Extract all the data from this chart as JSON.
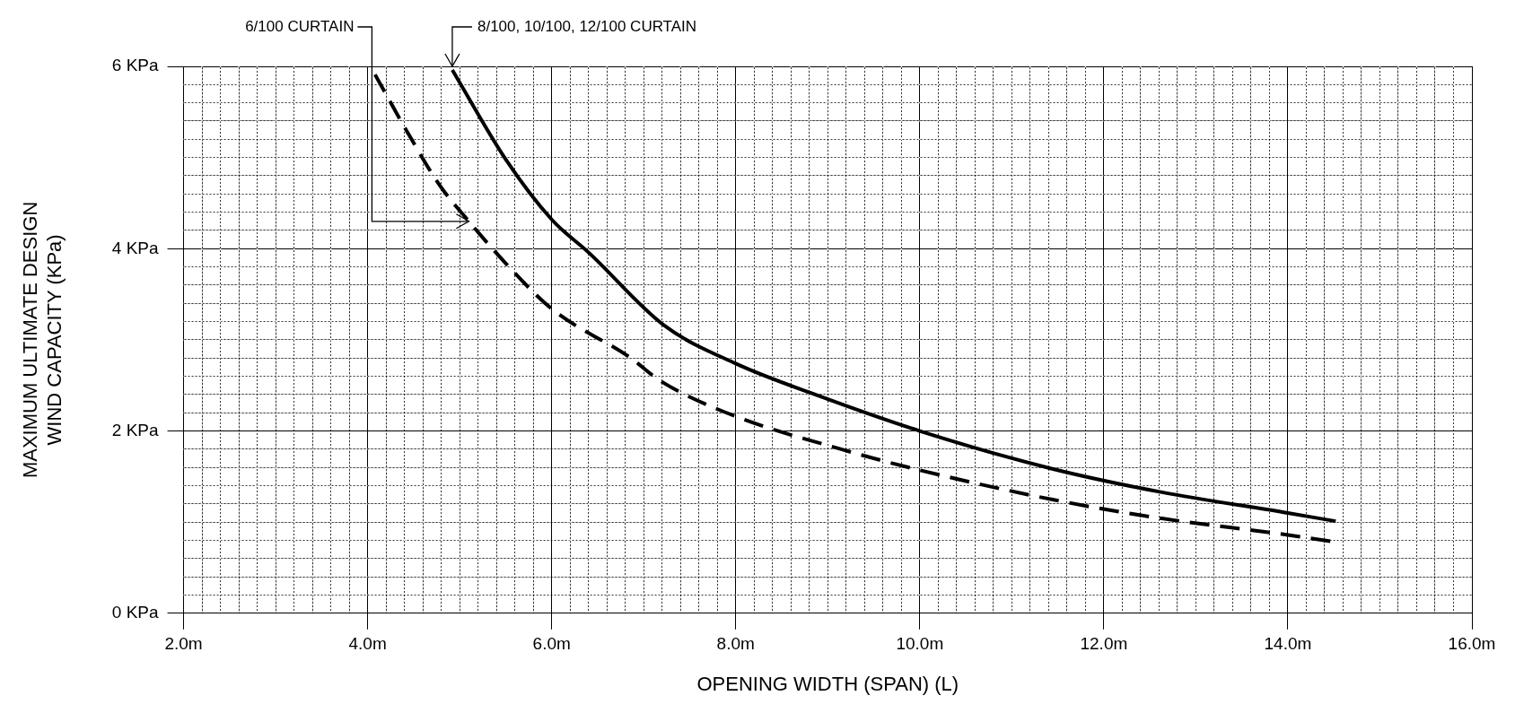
{
  "chart_data": {
    "type": "line",
    "xlabel": "OPENING WIDTH (SPAN) (L)",
    "ylabel": "MAXIMUM ULTIMATE DESIGN\nWIND CAPACITY (KPa)",
    "series": [
      {
        "color": "#000000",
        "line_style": "solid",
        "x": [
          4.92,
          5.5,
          6.0,
          6.41,
          7.22,
          8.0,
          8.89,
          10.0,
          11.42,
          12.62,
          14.0,
          14.52
        ],
        "values": [
          5.96,
          4.98,
          4.32,
          3.95,
          3.16,
          2.74,
          2.39,
          2.0,
          1.59,
          1.33,
          1.1,
          1.01
        ]
      },
      {
        "color": "#000000",
        "line_style": "dashed",
        "x": [
          4.08,
          4.42,
          4.78,
          5.1,
          5.5,
          6.0,
          6.86,
          7.18,
          8.0,
          9.18,
          10.0,
          11.48,
          12.63,
          14.0,
          14.52
        ],
        "values": [
          5.91,
          5.3,
          4.7,
          4.3,
          3.84,
          3.34,
          2.8,
          2.55,
          2.16,
          1.79,
          1.57,
          1.24,
          1.04,
          0.86,
          0.78
        ]
      }
    ],
    "annotations": [
      {
        "text": "6/100 CURTAIN",
        "x": 5.1,
        "y": 4.3
      },
      {
        "text": "8/100, 10/100, 12/100 CURTAIN",
        "x": 4.92,
        "y": 6.0
      }
    ],
    "xlim": [
      2,
      16
    ],
    "ylim": [
      0,
      6
    ],
    "grid": true,
    "legend": false,
    "marker": "none",
    "xticks": [
      {
        "value": 2,
        "label": "2.0m"
      },
      {
        "value": 2.2,
        "label": null
      },
      {
        "value": 2.4,
        "label": null
      },
      {
        "value": 2.6,
        "label": null
      },
      {
        "value": 2.8,
        "label": null
      },
      {
        "value": 3,
        "label": null
      },
      {
        "value": 3.2,
        "label": null
      },
      {
        "value": 3.4,
        "label": null
      },
      {
        "value": 3.6,
        "label": null
      },
      {
        "value": 3.8,
        "label": null
      },
      {
        "value": 4,
        "label": "4.0m"
      },
      {
        "value": 4.2,
        "label": null
      },
      {
        "value": 4.4,
        "label": null
      },
      {
        "value": 4.6,
        "label": null
      },
      {
        "value": 4.8,
        "label": null
      },
      {
        "value": 5,
        "label": null
      },
      {
        "value": 5.2,
        "label": null
      },
      {
        "value": 5.4,
        "label": null
      },
      {
        "value": 5.6,
        "label": null
      },
      {
        "value": 5.8,
        "label": null
      },
      {
        "value": 6,
        "label": "6.0m"
      },
      {
        "value": 6.2,
        "label": null
      },
      {
        "value": 6.4,
        "label": null
      },
      {
        "value": 6.6,
        "label": null
      },
      {
        "value": 6.8,
        "label": null
      },
      {
        "value": 7,
        "label": null
      },
      {
        "value": 7.2,
        "label": null
      },
      {
        "value": 7.4,
        "label": null
      },
      {
        "value": 7.6,
        "label": null
      },
      {
        "value": 7.8,
        "label": null
      },
      {
        "value": 8,
        "label": "8.0m"
      },
      {
        "value": 8.2,
        "label": null
      },
      {
        "value": 8.4,
        "label": null
      },
      {
        "value": 8.6,
        "label": null
      },
      {
        "value": 8.8,
        "label": null
      },
      {
        "value": 9,
        "label": null
      },
      {
        "value": 9.2,
        "label": null
      },
      {
        "value": 9.4,
        "label": null
      },
      {
        "value": 9.6,
        "label": null
      },
      {
        "value": 9.8,
        "label": null
      },
      {
        "value": 10,
        "label": "10.0m"
      },
      {
        "value": 10.2,
        "label": null
      },
      {
        "value": 10.4,
        "label": null
      },
      {
        "value": 10.6,
        "label": null
      },
      {
        "value": 10.8,
        "label": null
      },
      {
        "value": 11,
        "label": null
      },
      {
        "value": 11.2,
        "label": null
      },
      {
        "value": 11.4,
        "label": null
      },
      {
        "value": 11.6,
        "label": null
      },
      {
        "value": 11.8,
        "label": null
      },
      {
        "value": 12,
        "label": "12.0m"
      },
      {
        "value": 12.2,
        "label": null
      },
      {
        "value": 12.4,
        "label": null
      },
      {
        "value": 12.6,
        "label": null
      },
      {
        "value": 12.8,
        "label": null
      },
      {
        "value": 13,
        "label": null
      },
      {
        "value": 13.2,
        "label": null
      },
      {
        "value": 13.4,
        "label": null
      },
      {
        "value": 13.6,
        "label": null
      },
      {
        "value": 13.8,
        "label": null
      },
      {
        "value": 14,
        "label": "14.0m"
      },
      {
        "value": 14.2,
        "label": null
      },
      {
        "value": 14.4,
        "label": null
      },
      {
        "value": 14.6,
        "label": null
      },
      {
        "value": 14.8,
        "label": null
      },
      {
        "value": 15,
        "label": null
      },
      {
        "value": 15.2,
        "label": null
      },
      {
        "value": 15.4,
        "label": null
      },
      {
        "value": 15.6,
        "label": null
      },
      {
        "value": 15.8,
        "label": null
      },
      {
        "value": 16,
        "label": "16.0m"
      }
    ],
    "yticks": [
      {
        "value": 0,
        "label": "0 KPa"
      },
      {
        "value": 0.2,
        "label": null
      },
      {
        "value": 0.4,
        "label": null
      },
      {
        "value": 0.6,
        "label": null
      },
      {
        "value": 0.8,
        "label": null
      },
      {
        "value": 1,
        "label": null
      },
      {
        "value": 1.2,
        "label": null
      },
      {
        "value": 1.4,
        "label": null
      },
      {
        "value": 1.6,
        "label": null
      },
      {
        "value": 1.8,
        "label": null
      },
      {
        "value": 2,
        "label": "2 KPa"
      },
      {
        "value": 2.2,
        "label": null
      },
      {
        "value": 2.4,
        "label": null
      },
      {
        "value": 2.6,
        "label": null
      },
      {
        "value": 2.8,
        "label": null
      },
      {
        "value": 3,
        "label": null
      },
      {
        "value": 3.2,
        "label": null
      },
      {
        "value": 3.4,
        "label": null
      },
      {
        "value": 3.6,
        "label": null
      },
      {
        "value": 3.8,
        "label": null
      },
      {
        "value": 4,
        "label": "4 KPa"
      },
      {
        "value": 4.2,
        "label": null
      },
      {
        "value": 4.4,
        "label": null
      },
      {
        "value": 4.6,
        "label": null
      },
      {
        "value": 4.8,
        "label": null
      },
      {
        "value": 5,
        "label": null
      },
      {
        "value": 5.2,
        "label": null
      },
      {
        "value": 5.4,
        "label": null
      },
      {
        "value": 5.6,
        "label": null
      },
      {
        "value": 5.8,
        "label": null
      },
      {
        "value": 6,
        "label": "6 KPa"
      }
    ]
  }
}
